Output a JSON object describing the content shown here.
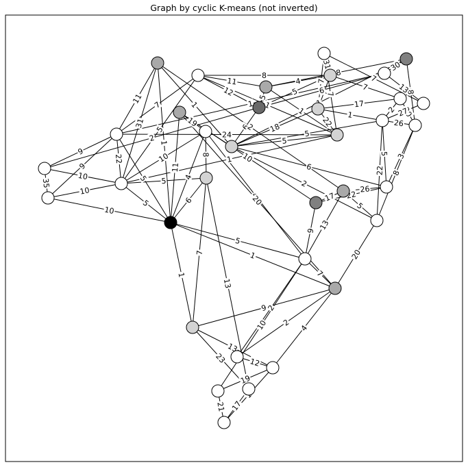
{
  "title": "Graph by cyclic K-means (not inverted)",
  "colors": {
    "white": "#ffffff",
    "light": "#d3d3d3",
    "mid": "#a9a9a9",
    "dark": "#808080",
    "darker": "#696969",
    "black": "#000000"
  },
  "nodes": [
    {
      "id": "A",
      "group": "white"
    },
    {
      "id": "B",
      "group": "light"
    },
    {
      "id": "C",
      "group": "dark"
    },
    {
      "id": "D",
      "group": "white"
    },
    {
      "id": "E",
      "group": "white"
    },
    {
      "id": "F",
      "group": "light"
    },
    {
      "id": "G",
      "group": "white"
    },
    {
      "id": "H",
      "group": "white"
    },
    {
      "id": "I",
      "group": "mid"
    },
    {
      "id": "J",
      "group": "darker"
    },
    {
      "id": "K",
      "group": "white"
    },
    {
      "id": "L",
      "group": "light"
    },
    {
      "id": "M",
      "group": "light"
    },
    {
      "id": "N",
      "group": "white"
    },
    {
      "id": "O",
      "group": "white"
    },
    {
      "id": "P",
      "group": "white"
    },
    {
      "id": "Q",
      "group": "mid"
    },
    {
      "id": "R",
      "group": "white"
    },
    {
      "id": "S",
      "group": "white"
    },
    {
      "id": "T",
      "group": "white"
    },
    {
      "id": "U",
      "group": "white"
    },
    {
      "id": "V",
      "group": "black"
    },
    {
      "id": "W",
      "group": "mid"
    },
    {
      "id": "X",
      "group": "dark"
    },
    {
      "id": "Y",
      "group": "white"
    },
    {
      "id": "Z",
      "group": "white"
    },
    {
      "id": "AA",
      "group": "light"
    },
    {
      "id": "AB",
      "group": "mid"
    },
    {
      "id": "AC",
      "group": "light"
    },
    {
      "id": "AD",
      "group": "white"
    },
    {
      "id": "AE",
      "group": "mid"
    },
    {
      "id": "AF",
      "group": "white"
    },
    {
      "id": "AG",
      "group": "white"
    },
    {
      "id": "AH",
      "group": "white"
    },
    {
      "id": "AI",
      "group": "white"
    }
  ],
  "edges": [
    {
      "s": "A",
      "t": "B",
      "w": "31"
    },
    {
      "s": "A",
      "t": "F",
      "w": "7"
    },
    {
      "s": "A",
      "t": "G",
      "w": "7"
    },
    {
      "s": "A",
      "t": "L",
      "w": "7"
    },
    {
      "s": "B",
      "t": "E",
      "w": "7"
    },
    {
      "s": "B",
      "t": "I",
      "w": "4"
    },
    {
      "s": "B",
      "t": "J",
      "w": "5"
    },
    {
      "s": "B",
      "t": "F",
      "w": "7"
    },
    {
      "s": "B",
      "t": "K",
      "w": "8"
    },
    {
      "s": "C",
      "t": "D",
      "w": "30"
    },
    {
      "s": "C",
      "t": "H",
      "w": "8"
    },
    {
      "s": "C",
      "t": "I",
      "w": "18"
    },
    {
      "s": "C",
      "t": "M",
      "w": "1"
    },
    {
      "s": "D",
      "t": "G",
      "w": "13"
    },
    {
      "s": "D",
      "t": "J",
      "w": "6"
    },
    {
      "s": "D",
      "t": "O",
      "w": "1"
    },
    {
      "s": "E",
      "t": "H",
      "w": "20"
    },
    {
      "s": "E",
      "t": "F",
      "w": "17"
    },
    {
      "s": "E",
      "t": "N",
      "w": "2"
    },
    {
      "s": "F",
      "t": "L",
      "w": "22"
    },
    {
      "s": "F",
      "t": "N",
      "w": "1"
    },
    {
      "s": "F",
      "t": "M",
      "w": "18"
    },
    {
      "s": "G",
      "t": "N",
      "w": "27"
    },
    {
      "s": "H",
      "t": "N",
      "w": "26"
    },
    {
      "s": "H",
      "t": "S",
      "w": "8"
    },
    {
      "s": "H",
      "t": "R",
      "w": "3"
    },
    {
      "s": "I",
      "t": "J",
      "w": "5"
    },
    {
      "s": "I",
      "t": "K",
      "w": "11"
    },
    {
      "s": "I",
      "t": "L",
      "w": "1"
    },
    {
      "s": "J",
      "t": "K",
      "w": "12"
    },
    {
      "s": "J",
      "t": "M",
      "w": "6"
    },
    {
      "s": "J",
      "t": "P",
      "w": "2"
    },
    {
      "s": "K",
      "t": "L",
      "w": "1"
    },
    {
      "s": "K",
      "t": "O",
      "w": "7"
    },
    {
      "s": "K",
      "t": "T",
      "w": "5"
    },
    {
      "s": "L",
      "t": "O",
      "w": "24"
    },
    {
      "s": "L",
      "t": "T",
      "w": "1"
    },
    {
      "s": "L",
      "t": "M",
      "w": "5"
    },
    {
      "s": "M",
      "t": "N",
      "w": "5"
    },
    {
      "s": "M",
      "t": "R",
      "w": "6"
    },
    {
      "s": "M",
      "t": "S",
      "w": "2"
    },
    {
      "s": "M",
      "t": "AB",
      "w": "9"
    },
    {
      "s": "M",
      "t": "Q",
      "w": "1"
    },
    {
      "s": "N",
      "t": "S",
      "w": "22"
    },
    {
      "s": "N",
      "t": "R",
      "w": "5"
    },
    {
      "s": "O",
      "t": "P",
      "w": "9"
    },
    {
      "s": "O",
      "t": "Q",
      "w": "11"
    },
    {
      "s": "O",
      "t": "T",
      "w": "22"
    },
    {
      "s": "O",
      "t": "U",
      "w": "9"
    },
    {
      "s": "O",
      "t": "V",
      "w": "5"
    },
    {
      "s": "P",
      "t": "T",
      "w": "10"
    },
    {
      "s": "P",
      "t": "U",
      "w": "35"
    },
    {
      "s": "Q",
      "t": "T",
      "w": "31"
    },
    {
      "s": "Q",
      "t": "V",
      "w": "1"
    },
    {
      "s": "Q",
      "t": "W",
      "w": "2"
    },
    {
      "s": "R",
      "t": "W",
      "w": "26"
    },
    {
      "s": "R",
      "t": "X",
      "w": "22"
    },
    {
      "s": "S",
      "t": "W",
      "w": "5"
    },
    {
      "s": "S",
      "t": "AE",
      "w": "20"
    },
    {
      "s": "T",
      "t": "V",
      "w": "5"
    },
    {
      "s": "T",
      "t": "Y",
      "w": "10"
    },
    {
      "s": "T",
      "t": "AA",
      "w": "5"
    },
    {
      "s": "U",
      "t": "V",
      "w": "10"
    },
    {
      "s": "U",
      "t": "T",
      "w": "10"
    },
    {
      "s": "V",
      "t": "Y",
      "w": "4"
    },
    {
      "s": "V",
      "t": "Z",
      "w": "5"
    },
    {
      "s": "V",
      "t": "AE",
      "w": "1"
    },
    {
      "s": "V",
      "t": "AA",
      "w": "6"
    },
    {
      "s": "V",
      "t": "AC",
      "w": "1"
    },
    {
      "s": "V",
      "t": "AB",
      "w": "11"
    },
    {
      "s": "W",
      "t": "X",
      "w": "17"
    },
    {
      "s": "W",
      "t": "Z",
      "w": "13"
    },
    {
      "s": "X",
      "t": "AB",
      "w": "10"
    },
    {
      "s": "X",
      "t": "Z",
      "w": "9"
    },
    {
      "s": "Y",
      "t": "AB",
      "w": "19"
    },
    {
      "s": "Y",
      "t": "AA",
      "w": "8"
    },
    {
      "s": "Y",
      "t": "Z",
      "w": "4"
    },
    {
      "s": "Z",
      "t": "AE",
      "w": "7"
    },
    {
      "s": "Z",
      "t": "AF",
      "w": "10"
    },
    {
      "s": "Z",
      "t": "AD",
      "w": "2"
    },
    {
      "s": "AA",
      "t": "AC",
      "w": "7"
    },
    {
      "s": "AA",
      "t": "AG",
      "w": "13"
    },
    {
      "s": "AB",
      "t": "AE",
      "w": "20"
    },
    {
      "s": "AC",
      "t": "AE",
      "w": "9"
    },
    {
      "s": "AD",
      "t": "AE",
      "w": "2"
    },
    {
      "s": "AD",
      "t": "AH",
      "w": "12"
    },
    {
      "s": "AE",
      "t": "AH",
      "w": "4"
    },
    {
      "s": "AF",
      "t": "AH",
      "w": "19"
    },
    {
      "s": "AF",
      "t": "AI",
      "w": "21"
    },
    {
      "s": "AG",
      "t": "AI",
      "w": "17"
    },
    {
      "s": "AG",
      "t": "AC",
      "w": "23"
    },
    {
      "s": "AH",
      "t": "AC",
      "w": "13"
    },
    {
      "s": "AI",
      "t": "AH",
      "w": "1"
    }
  ]
}
